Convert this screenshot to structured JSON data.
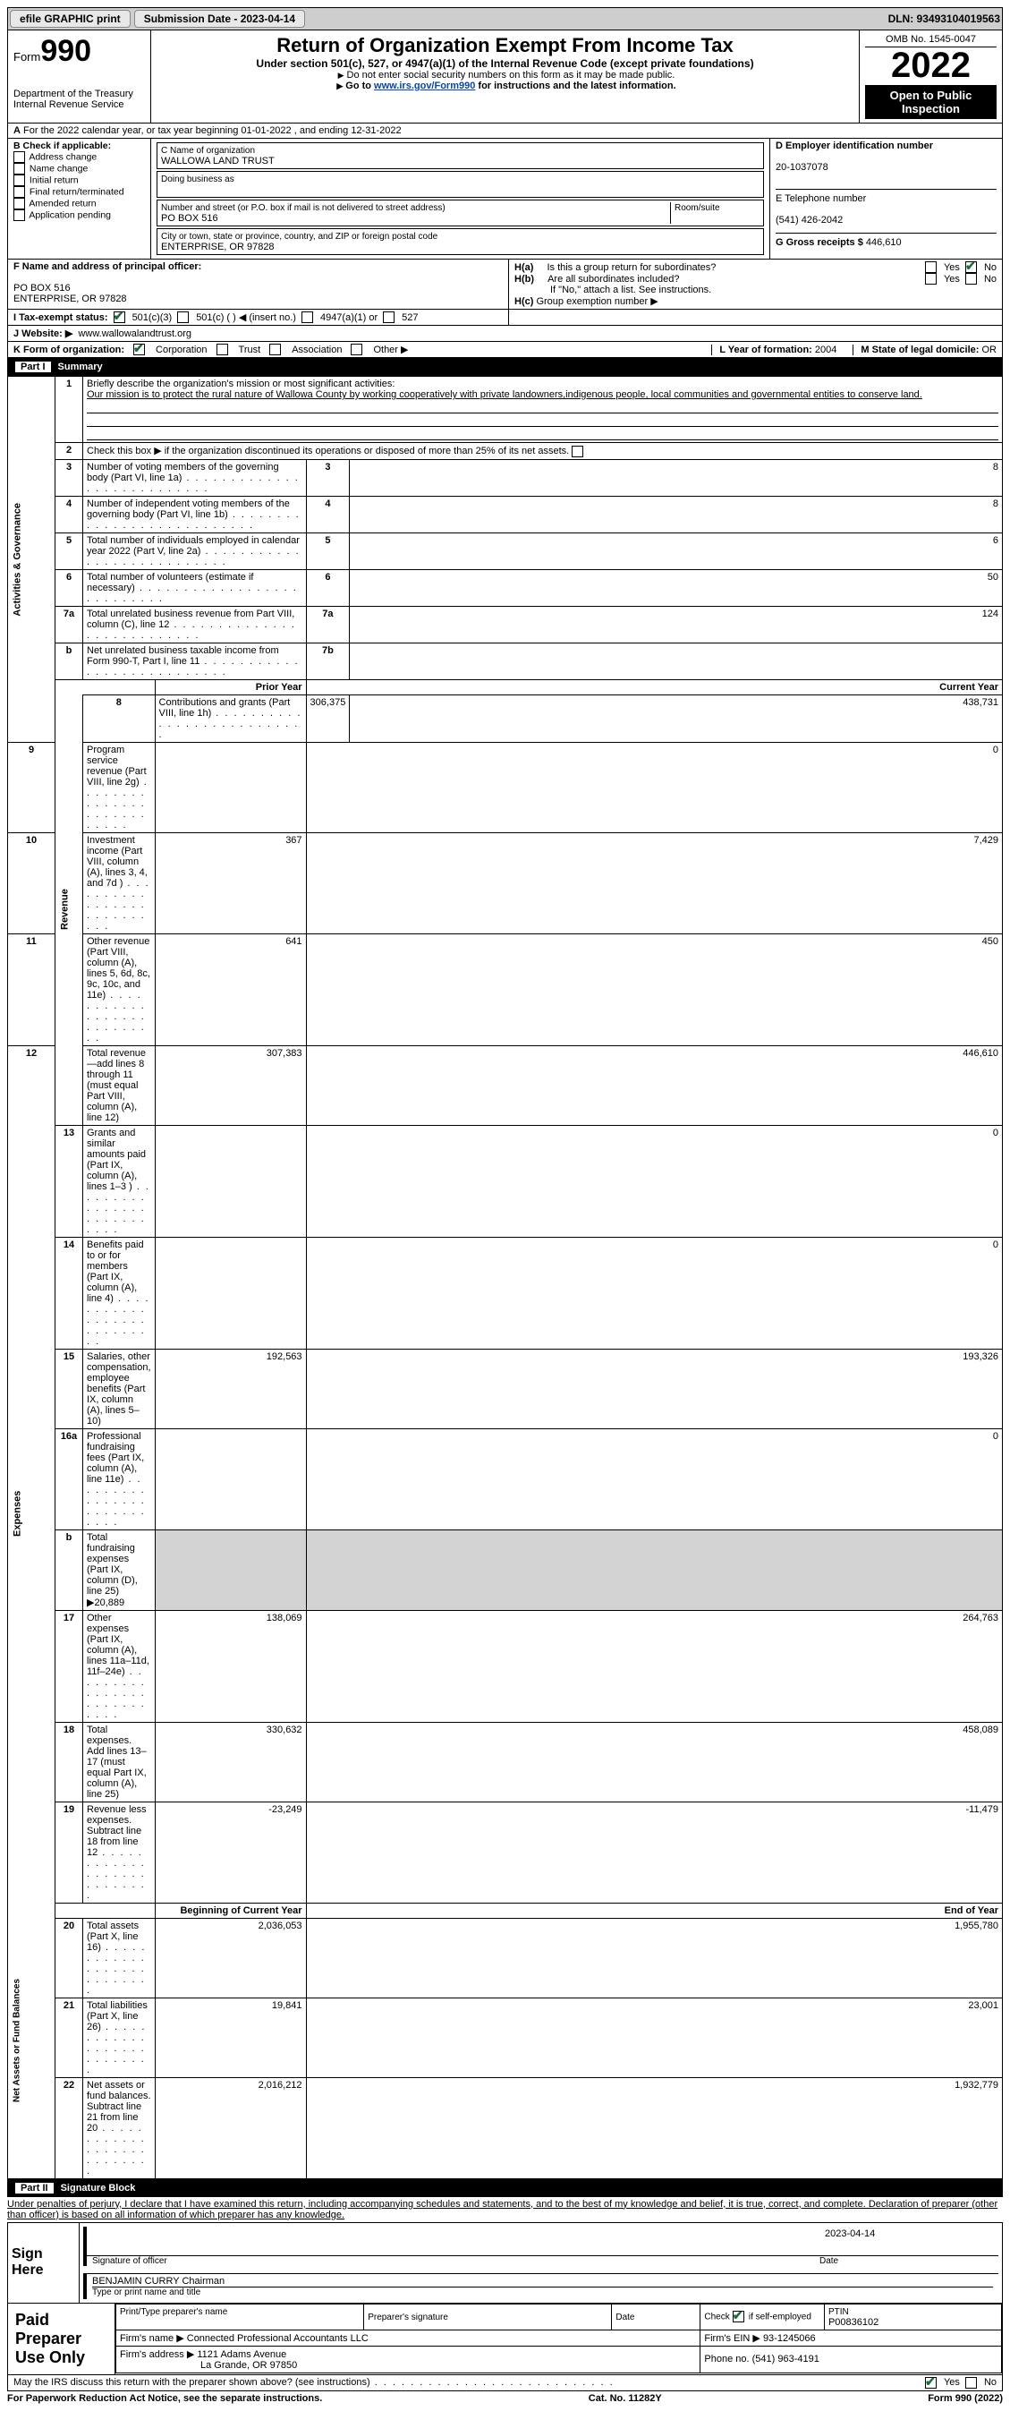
{
  "topbar": {
    "efile": "efile GRAPHIC print",
    "sub_label": "Submission Date - 2023-04-14",
    "dln_label": "DLN: 93493104019563"
  },
  "header": {
    "form_prefix": "Form",
    "form_no": "990",
    "dept": "Department of the Treasury",
    "irs": "Internal Revenue Service",
    "title": "Return of Organization Exempt From Income Tax",
    "sub1": "Under section 501(c), 527, or 4947(a)(1) of the Internal Revenue Code (except private foundations)",
    "sub2": "Do not enter social security numbers on this form as it may be made public.",
    "sub3_pre": "Go to ",
    "sub3_link": "www.irs.gov/Form990",
    "sub3_post": " for instructions and the latest information.",
    "omb": "OMB No. 1545-0047",
    "year": "2022",
    "open": "Open to Public Inspection"
  },
  "a_line": "For the 2022 calendar year, or tax year beginning 01-01-2022   , and ending 12-31-2022",
  "sectionB": {
    "b_label": "B Check if applicable:",
    "opts": [
      "Address change",
      "Name change",
      "Initial return",
      "Final return/terminated",
      "Amended return",
      "Application pending"
    ],
    "c_label": "C Name of organization",
    "c_name": "WALLOWA LAND TRUST",
    "dba": "Doing business as",
    "addr_label": "Number and street (or P.O. box if mail is not delivered to street address)",
    "room": "Room/suite",
    "addr": "PO BOX 516",
    "city_label": "City or town, state or province, country, and ZIP or foreign postal code",
    "city": "ENTERPRISE, OR  97828",
    "d_label": "D Employer identification number",
    "ein": "20-1037078",
    "e_label": "E Telephone number",
    "phone": "(541) 426-2042",
    "g_label": "G Gross receipts $",
    "g_val": "446,610"
  },
  "sectionF": {
    "f_label": "F Name and address of principal officer:",
    "f_addr1": "PO BOX 516",
    "f_addr2": "ENTERPRISE, OR  97828",
    "ha": "Is this a group return for subordinates?",
    "hb": "Are all subordinates included?",
    "hnote": "If \"No,\" attach a list. See instructions.",
    "hc": "Group exemption number",
    "ha_label": "H(a)",
    "hb_label": "H(b)",
    "hc_label": "H(c)"
  },
  "i_line": {
    "label": "I   Tax-exempt status:",
    "o1": "501(c)(3)",
    "o2": "501(c) (  ) ◀ (insert no.)",
    "o3": "4947(a)(1) or",
    "o4": "527"
  },
  "j_line": {
    "label": "J   Website: ▶",
    "val": "www.wallowalandtrust.org"
  },
  "k_line": {
    "label": "K Form of organization:",
    "o1": "Corporation",
    "o2": "Trust",
    "o3": "Association",
    "o4": "Other ▶",
    "l_label": "L Year of formation:",
    "l_val": "2004",
    "m_label": "M State of legal domicile:",
    "m_val": "OR"
  },
  "partI": {
    "part": "Part I",
    "title": "Summary"
  },
  "summary": {
    "l1_label": "Briefly describe the organization's mission or most significant activities:",
    "l1_text": "Our mission is to protect the rural nature of Wallowa County by working cooperatively with private landowners,indigenous people, local communities and governmental entities to conserve land.",
    "l2": "Check this box ▶  if the organization discontinued its operations or disposed of more than 25% of its net assets.",
    "l3": "Number of voting members of the governing body (Part VI, line 1a)",
    "l4": "Number of independent voting members of the governing body (Part VI, line 1b)",
    "l5": "Total number of individuals employed in calendar year 2022 (Part V, line 2a)",
    "l6": "Total number of volunteers (estimate if necessary)",
    "l7a": "Total unrelated business revenue from Part VIII, column (C), line 12",
    "l7b": "Net unrelated business taxable income from Form 990-T, Part I, line 11",
    "v3": "8",
    "v4": "8",
    "v5": "6",
    "v6": "50",
    "v7a": "124",
    "v7b": "",
    "py": "Prior Year",
    "cy": "Current Year",
    "l8": "Contributions and grants (Part VIII, line 1h)",
    "v8p": "306,375",
    "v8c": "438,731",
    "l9": "Program service revenue (Part VIII, line 2g)",
    "v9p": "",
    "v9c": "0",
    "l10": "Investment income (Part VIII, column (A), lines 3, 4, and 7d )",
    "v10p": "367",
    "v10c": "7,429",
    "l11": "Other revenue (Part VIII, column (A), lines 5, 6d, 8c, 9c, 10c, and 11e)",
    "v11p": "641",
    "v11c": "450",
    "l12": "Total revenue—add lines 8 through 11 (must equal Part VIII, column (A), line 12)",
    "v12p": "307,383",
    "v12c": "446,610",
    "l13": "Grants and similar amounts paid (Part IX, column (A), lines 1–3 )",
    "v13p": "",
    "v13c": "0",
    "l14": "Benefits paid to or for members (Part IX, column (A), line 4)",
    "v14p": "",
    "v14c": "0",
    "l15": "Salaries, other compensation, employee benefits (Part IX, column (A), lines 5–10)",
    "v15p": "192,563",
    "v15c": "193,326",
    "l16a": "Professional fundraising fees (Part IX, column (A), line 11e)",
    "v16ap": "",
    "v16ac": "0",
    "l16b": "Total fundraising expenses (Part IX, column (D), line 25) ▶20,889",
    "l17": "Other expenses (Part IX, column (A), lines 11a–11d, 11f–24e)",
    "v17p": "138,069",
    "v17c": "264,763",
    "l18": "Total expenses. Add lines 13–17 (must equal Part IX, column (A), line 25)",
    "v18p": "330,632",
    "v18c": "458,089",
    "l19": "Revenue less expenses. Subtract line 18 from line 12",
    "v19p": "-23,249",
    "v19c": "-11,479",
    "boy": "Beginning of Current Year",
    "eoy": "End of Year",
    "l20": "Total assets (Part X, line 16)",
    "v20p": "2,036,053",
    "v20c": "1,955,780",
    "l21": "Total liabilities (Part X, line 26)",
    "v21p": "19,841",
    "v21c": "23,001",
    "l22": "Net assets or fund balances. Subtract line 21 from line 20",
    "v22p": "2,016,212",
    "v22c": "1,932,779"
  },
  "side": {
    "s1": "Activities & Governance",
    "s2": "Revenue",
    "s3": "Expenses",
    "s4": "Net Assets or Fund Balances"
  },
  "partII": {
    "part": "Part II",
    "title": "Signature Block"
  },
  "sigtext": "Under penalties of perjury, I declare that I have examined this return, including accompanying schedules and statements, and to the best of my knowledge and belief, it is true, correct, and complete. Declaration of preparer (other than officer) is based on all information of which preparer has any knowledge.",
  "sign": {
    "here": "Sign Here",
    "sig_officer": "Signature of officer",
    "date": "Date",
    "sig_date": "2023-04-14",
    "name": "BENJAMIN CURRY Chairman",
    "name_label": "Type or print name and title"
  },
  "prep": {
    "title": "Paid Preparer Use Only",
    "c1": "Print/Type preparer's name",
    "c2": "Preparer's signature",
    "c3": "Date",
    "c4_pre": "Check",
    "c4_post": "if self-employed",
    "c5": "PTIN",
    "ptin": "P00836102",
    "firm_name_l": "Firm's name  ▶",
    "firm_name": "Connected Professional Accountants LLC",
    "firm_ein_l": "Firm's EIN ▶",
    "firm_ein": "93-1245066",
    "firm_addr_l": "Firm's address ▶",
    "firm_addr1": "1121 Adams Avenue",
    "firm_addr2": "La Grande, OR  97850",
    "phone_l": "Phone no.",
    "phone": "(541) 963-4191"
  },
  "discuss": "May the IRS discuss this return with the preparer shown above? (see instructions)",
  "footer": {
    "pra": "For Paperwork Reduction Act Notice, see the separate instructions.",
    "cat": "Cat. No. 11282Y",
    "form": "Form 990 (2022)"
  },
  "yn": {
    "yes": "Yes",
    "no": "No"
  }
}
